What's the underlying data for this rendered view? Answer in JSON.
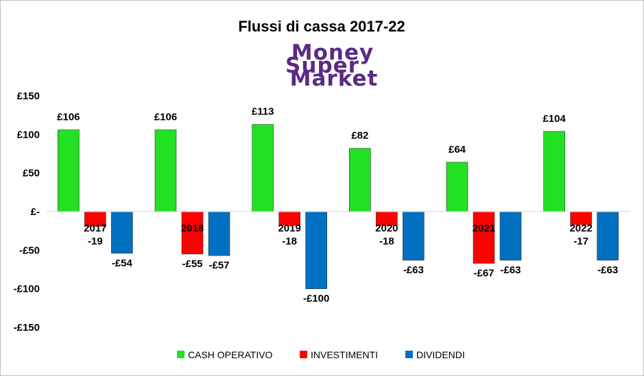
{
  "chart_data": {
    "type": "bar",
    "title": "Flussi di cassa 2017-22",
    "categories": [
      "2017",
      "2018",
      "2019",
      "2020",
      "2021",
      "2022"
    ],
    "series": [
      {
        "name": "CASH OPERATIVO",
        "color": "#22e022",
        "values": [
          106,
          106,
          113,
          82,
          64,
          104
        ],
        "labels": [
          "£106",
          "£106",
          "£113",
          "£82",
          "£64",
          "£104"
        ]
      },
      {
        "name": "INVESTIMENTI",
        "color": "#ff0000",
        "values": [
          -19,
          -55,
          -18,
          -18,
          -67,
          -17
        ],
        "labels": [
          "-19",
          "-£55",
          "-18",
          "-18",
          "-£67",
          "-17"
        ]
      },
      {
        "name": "DIVIDENDI",
        "color": "#0070c0",
        "values": [
          -54,
          -57,
          -100,
          -63,
          -63,
          -63
        ],
        "labels": [
          "-£54",
          "-£57",
          "-£100",
          "-£63",
          "-£63",
          "-£63"
        ]
      }
    ],
    "ylim": [
      -150,
      150
    ],
    "yticks": [
      150,
      100,
      50,
      0,
      -50,
      -100,
      -150
    ],
    "ytick_labels": [
      "£150",
      "£100",
      "£50",
      "£-",
      "-£50",
      "-£100",
      "-£150"
    ],
    "legend": "bottom",
    "grid": false
  },
  "logo": {
    "lines": [
      "Money",
      "Super",
      "Market"
    ]
  }
}
